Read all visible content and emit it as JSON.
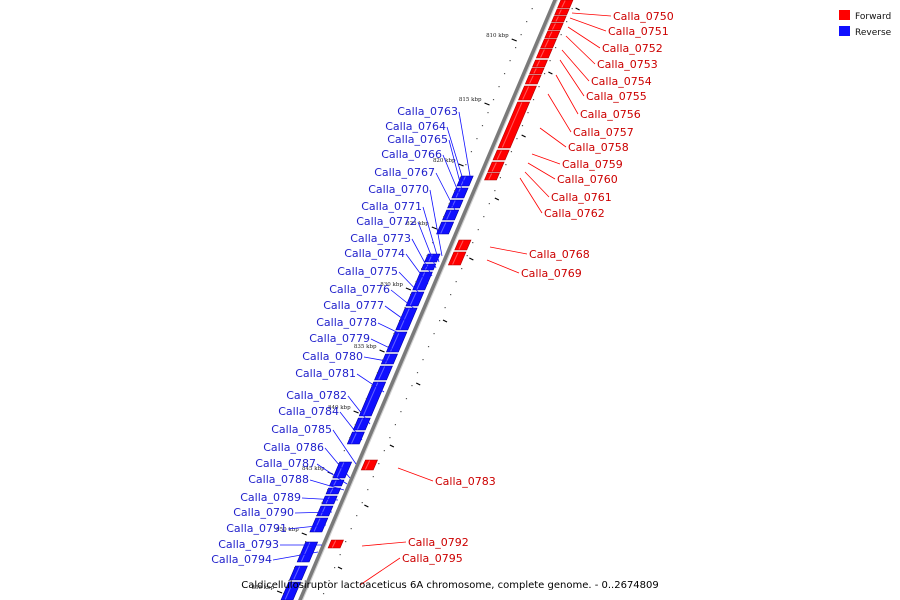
{
  "colors": {
    "forward": "#ff0000",
    "reverse": "#1010ff",
    "forward_text": "#cc0000",
    "reverse_text": "#2222cc"
  },
  "legend": {
    "forward": "Forward",
    "reverse": "Reverse"
  },
  "title": "Caldicellulosiruptor lactoaceticus 6A chromosome, complete genome. - 0..2674809",
  "ticks": [
    "810 kbp",
    "815 kbp",
    "820 kbp",
    "825 kbp",
    "830 kbp",
    "835 kbp",
    "840 kbp",
    "845 kbp",
    "850 kbp",
    "855 kbp"
  ],
  "forward_genes": [
    "Calla_0750",
    "Calla_0751",
    "Calla_0752",
    "Calla_0753",
    "Calla_0754",
    "Calla_0755",
    "Calla_0756",
    "Calla_0757",
    "Calla_0758",
    "Calla_0759",
    "Calla_0760",
    "Calla_0761",
    "Calla_0762",
    "Calla_0768",
    "Calla_0769",
    "Calla_0783",
    "Calla_0792",
    "Calla_0795"
  ],
  "reverse_genes": [
    "Calla_0763",
    "Calla_0764",
    "Calla_0765",
    "Calla_0766",
    "Calla_0767",
    "Calla_0770",
    "Calla_0771",
    "Calla_0772",
    "Calla_0773",
    "Calla_0774",
    "Calla_0775",
    "Calla_0776",
    "Calla_0777",
    "Calla_0778",
    "Calla_0779",
    "Calla_0780",
    "Calla_0781",
    "Calla_0782",
    "Calla_0784",
    "Calla_0785",
    "Calla_0786",
    "Calla_0787",
    "Calla_0788",
    "Calla_0789",
    "Calla_0790",
    "Calla_0791",
    "Calla_0793",
    "Calla_0794"
  ]
}
